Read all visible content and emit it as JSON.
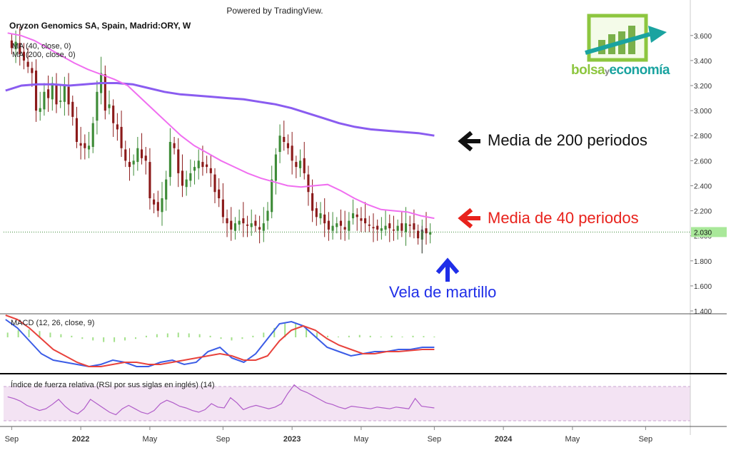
{
  "header": {
    "powered_by": "Powered by TradingView.",
    "title": "Oryzon Genomics SA, Spain, Madrid:ORY, W"
  },
  "legend": {
    "ma40": "MA (40, close, 0)",
    "ma200": "MA (200, close, 0)"
  },
  "macd_label": "MACD (12, 26, close, 9)",
  "rsi_label": "Índice de fuerza relativa (RSI por sus siglas en inglés) (14)",
  "logo": {
    "text_part1": "bolsa",
    "text_part2": "y",
    "text_part3": "economía"
  },
  "annotations": {
    "ma200_label": "Media de 200 periodos",
    "ma40_label": "Media de 40 periodos",
    "hammer_label": "Vela de martillo"
  },
  "colors": {
    "up": "#3d8b37",
    "down": "#8b1a1a",
    "ma40": "#f06ef0",
    "ma200": "#8a5cf0",
    "macd_line": "#3b5ce6",
    "signal_line": "#e8423c",
    "hist": "#a3e08a",
    "rsi_line": "#b05cc9",
    "rsi_band": "#f3e3f3",
    "annot_red": "#e8221c",
    "annot_black": "#111111",
    "annot_blue": "#1f2ee8",
    "price_tag_bg": "#a9e89a"
  },
  "chart_data": {
    "type": "line",
    "price_axis": {
      "ticks": [
        1.4,
        1.6,
        1.8,
        2.0,
        2.2,
        2.4,
        2.6,
        2.8,
        3.0,
        3.2,
        3.4,
        3.6
      ],
      "ylim": [
        1.4,
        3.65
      ]
    },
    "current_price": 2.03,
    "current_price_label": "2.030",
    "x_ticks": [
      "Sep",
      "2022",
      "May",
      "Sep",
      "2023",
      "May",
      "Sep",
      "2024",
      "May",
      "Sep"
    ],
    "x_tick_bold": [
      false,
      true,
      false,
      false,
      true,
      false,
      false,
      true,
      false,
      false
    ],
    "x_tick_weeks": [
      0,
      17,
      34,
      52,
      69,
      86,
      104,
      121,
      138,
      156
    ],
    "x_range_weeks": [
      -2,
      167
    ],
    "weekly_closes": [
      3.5,
      3.55,
      3.45,
      3.4,
      3.35,
      3.3,
      3.0,
      3.02,
      3.15,
      3.1,
      3.22,
      3.05,
      3.08,
      3.2,
      3.05,
      2.95,
      2.75,
      2.72,
      2.7,
      2.72,
      2.9,
      3.15,
      3.3,
      3.0,
      3.05,
      2.9,
      2.85,
      2.7,
      2.6,
      2.55,
      2.6,
      2.7,
      2.62,
      2.6,
      2.3,
      2.25,
      2.2,
      2.3,
      2.45,
      2.75,
      2.7,
      2.5,
      2.4,
      2.45,
      2.5,
      2.55,
      2.6,
      2.55,
      2.55,
      2.5,
      2.35,
      2.3,
      2.15,
      2.1,
      2.05,
      2.1,
      2.12,
      2.1,
      2.08,
      2.1,
      2.08,
      2.05,
      2.1,
      2.2,
      2.45,
      2.65,
      2.8,
      2.75,
      2.7,
      2.6,
      2.55,
      2.6,
      2.5,
      2.35,
      2.2,
      2.15,
      2.18,
      2.1,
      2.05,
      2.08,
      2.1,
      2.08,
      2.05,
      2.12,
      2.18,
      2.15,
      2.12,
      2.1,
      2.08,
      2.06,
      2.05,
      2.06,
      2.08,
      2.06,
      2.05,
      2.08,
      2.04,
      2.1,
      2.08,
      2.05,
      1.98,
      2.04,
      2.02,
      2.03
    ],
    "ma40": [
      3.62,
      3.6,
      3.56,
      3.5,
      3.44,
      3.38,
      3.33,
      3.29,
      3.25,
      3.2,
      3.1,
      3.0,
      2.9,
      2.8,
      2.72,
      2.66,
      2.6,
      2.55,
      2.5,
      2.46,
      2.43,
      2.4,
      2.39,
      2.4,
      2.41,
      2.36,
      2.3,
      2.25,
      2.21,
      2.2,
      2.19,
      2.16,
      2.14
    ],
    "ma200": [
      3.16,
      3.2,
      3.21,
      3.21,
      3.2,
      3.21,
      3.22,
      3.22,
      3.21,
      3.18,
      3.15,
      3.13,
      3.12,
      3.11,
      3.1,
      3.09,
      3.07,
      3.05,
      3.02,
      2.98,
      2.94,
      2.9,
      2.87,
      2.85,
      2.84,
      2.83,
      2.82,
      2.8
    ],
    "macd_hist": [
      0.3,
      0.45,
      0.5,
      0.4,
      0.3,
      0.2,
      0.1,
      -0.1,
      -0.2,
      -0.3,
      -0.3,
      -0.2,
      -0.1,
      0.1,
      0.2,
      0.25,
      0.3,
      0.25,
      0.2,
      0.1,
      -0.1,
      -0.2,
      -0.1,
      0.1,
      0.3,
      0.6,
      0.95,
      0.9,
      0.6,
      0.3,
      0.1,
      0.05,
      0.1,
      0.15,
      0.1,
      0.05,
      0.1,
      0.05,
      0.1,
      0.08,
      0.05
    ],
    "macd_line": [
      1.2,
      0.8,
      0.2,
      -0.4,
      -0.7,
      -0.8,
      -0.9,
      -1.0,
      -0.9,
      -0.7,
      -0.8,
      -1.0,
      -1.0,
      -0.8,
      -0.7,
      -0.9,
      -0.8,
      -0.3,
      -0.1,
      -0.6,
      -0.8,
      -0.4,
      0.3,
      1.0,
      1.1,
      0.9,
      0.4,
      -0.1,
      -0.3,
      -0.5,
      -0.4,
      -0.3,
      -0.3,
      -0.2,
      -0.2,
      -0.1,
      -0.1
    ],
    "signal_line": [
      1.4,
      1.2,
      0.8,
      0.3,
      -0.2,
      -0.5,
      -0.8,
      -1.0,
      -1.0,
      -0.9,
      -0.8,
      -0.8,
      -0.9,
      -0.9,
      -0.8,
      -0.7,
      -0.6,
      -0.5,
      -0.4,
      -0.5,
      -0.7,
      -0.7,
      -0.5,
      0.2,
      0.7,
      0.9,
      0.7,
      0.3,
      0.0,
      -0.2,
      -0.4,
      -0.4,
      -0.3,
      -0.3,
      -0.25,
      -0.2,
      -0.2
    ],
    "rsi": [
      58,
      56,
      53,
      48,
      45,
      42,
      44,
      49,
      55,
      47,
      41,
      38,
      44,
      55,
      50,
      45,
      40,
      37,
      44,
      48,
      44,
      40,
      38,
      42,
      50,
      54,
      51,
      47,
      45,
      42,
      40,
      43,
      50,
      46,
      45,
      57,
      51,
      43,
      46,
      48,
      46,
      44,
      46,
      50,
      62,
      72,
      66,
      63,
      59,
      55,
      51,
      49,
      46,
      44,
      47,
      46,
      45,
      44,
      46,
      45,
      44,
      46,
      45,
      44,
      56,
      47,
      46,
      45
    ]
  }
}
